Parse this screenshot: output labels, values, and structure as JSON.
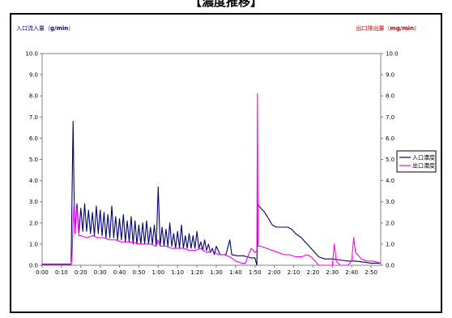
{
  "chart_data": {
    "type": "line",
    "title": "【濃度推移】",
    "y_left_label": {
      "prefix": "入口流入量（",
      "unit": "g/min",
      "suffix": "）"
    },
    "y_right_label": {
      "prefix": "出口排出量（",
      "unit": "mg/min",
      "suffix": "）"
    },
    "ylim": [
      0,
      10
    ],
    "y_ticks": [
      "0.0",
      "1.0",
      "2.0",
      "3.0",
      "4.0",
      "5.0",
      "6.0",
      "7.0",
      "8.0",
      "9.0",
      "10.0"
    ],
    "x_ticks": [
      "0:00",
      "0:10",
      "0:20",
      "0:30",
      "0:40",
      "0:50",
      "1:00",
      "1:10",
      "1:20",
      "1:30",
      "1:40",
      "1:50",
      "2:00",
      "2:10",
      "2:20",
      "2:30",
      "2:40",
      "2:50"
    ],
    "xlim_minutes": [
      0,
      175
    ],
    "grid": false,
    "legend_position": "right",
    "series": [
      {
        "name": "入口濃度",
        "color": "#000080",
        "points": [
          [
            0,
            0.05
          ],
          [
            10,
            0.05
          ],
          [
            15,
            0.05
          ],
          [
            15.5,
            3.5
          ],
          [
            16,
            6.8
          ],
          [
            16.5,
            3.5
          ],
          [
            17,
            1.6
          ],
          [
            18,
            2.9
          ],
          [
            19,
            1.5
          ],
          [
            20,
            2.7
          ],
          [
            21,
            1.6
          ],
          [
            22,
            2.9
          ],
          [
            23,
            1.6
          ],
          [
            24,
            2.6
          ],
          [
            25,
            1.5
          ],
          [
            26,
            2.5
          ],
          [
            27,
            1.4
          ],
          [
            28,
            2.8
          ],
          [
            29,
            1.5
          ],
          [
            30,
            2.6
          ],
          [
            31,
            1.4
          ],
          [
            32,
            2.5
          ],
          [
            33,
            1.3
          ],
          [
            34,
            2.4
          ],
          [
            35,
            1.3
          ],
          [
            36,
            2.8
          ],
          [
            37,
            1.3
          ],
          [
            38,
            2.3
          ],
          [
            39,
            1.2
          ],
          [
            40,
            2.2
          ],
          [
            41,
            1.2
          ],
          [
            42,
            2.4
          ],
          [
            43,
            1.1
          ],
          [
            44,
            2.1
          ],
          [
            45,
            1.1
          ],
          [
            46,
            2.3
          ],
          [
            47,
            1.0
          ],
          [
            48,
            2.1
          ],
          [
            49,
            1.0
          ],
          [
            50,
            1.9
          ],
          [
            51,
            1.0
          ],
          [
            52,
            2.0
          ],
          [
            53,
            1.0
          ],
          [
            54,
            2.1
          ],
          [
            55,
            1.0
          ],
          [
            56,
            1.8
          ],
          [
            57,
            1.0
          ],
          [
            58,
            1.9
          ],
          [
            59,
            0.9
          ],
          [
            60,
            3.7
          ],
          [
            61,
            0.9
          ],
          [
            62,
            1.8
          ],
          [
            63,
            0.9
          ],
          [
            64,
            1.7
          ],
          [
            65,
            0.9
          ],
          [
            66,
            2.0
          ],
          [
            67,
            0.9
          ],
          [
            68,
            1.5
          ],
          [
            69,
            0.8
          ],
          [
            70,
            1.6
          ],
          [
            71,
            0.8
          ],
          [
            72,
            1.9
          ],
          [
            73,
            0.8
          ],
          [
            74,
            1.4
          ],
          [
            75,
            0.8
          ],
          [
            76,
            1.5
          ],
          [
            77,
            0.8
          ],
          [
            78,
            1.4
          ],
          [
            79,
            0.8
          ],
          [
            80,
            1.6
          ],
          [
            81,
            0.8
          ],
          [
            82,
            1.1
          ],
          [
            83,
            0.7
          ],
          [
            84,
            1.2
          ],
          [
            85,
            0.7
          ],
          [
            86,
            1.0
          ],
          [
            87,
            0.6
          ],
          [
            88,
            0.8
          ],
          [
            89,
            0.5
          ],
          [
            90,
            0.9
          ],
          [
            92,
            0.5
          ],
          [
            95,
            0.5
          ],
          [
            97,
            1.2
          ],
          [
            98,
            0.5
          ],
          [
            101,
            0.45
          ],
          [
            104,
            0.45
          ],
          [
            106,
            0.4
          ],
          [
            108,
            0.35
          ],
          [
            110,
            0.35
          ],
          [
            111,
            0.0
          ],
          [
            111.5,
            2.9
          ],
          [
            112,
            2.8
          ],
          [
            113,
            2.7
          ],
          [
            115,
            2.5
          ],
          [
            117,
            2.2
          ],
          [
            119,
            1.9
          ],
          [
            121,
            1.8
          ],
          [
            124,
            1.8
          ],
          [
            127,
            1.8
          ],
          [
            129,
            1.7
          ],
          [
            131,
            1.5
          ],
          [
            134,
            1.3
          ],
          [
            137,
            1.0
          ],
          [
            140,
            0.7
          ],
          [
            143,
            0.4
          ],
          [
            146,
            0.3
          ],
          [
            150,
            0.3
          ],
          [
            154,
            0.25
          ],
          [
            158,
            0.2
          ],
          [
            162,
            0.2
          ],
          [
            166,
            0.15
          ],
          [
            170,
            0.1
          ],
          [
            175,
            0.1
          ]
        ]
      },
      {
        "name": "出口濃度",
        "color": "#ff00ff",
        "points": [
          [
            0,
            0.0
          ],
          [
            15,
            0.0
          ],
          [
            15.5,
            0.5
          ],
          [
            16,
            2.0
          ],
          [
            16.5,
            3.0
          ],
          [
            17,
            1.5
          ],
          [
            18,
            2.7
          ],
          [
            19,
            1.4
          ],
          [
            20,
            1.4
          ],
          [
            23,
            1.3
          ],
          [
            26,
            1.4
          ],
          [
            29,
            1.3
          ],
          [
            32,
            1.3
          ],
          [
            35,
            1.2
          ],
          [
            38,
            1.2
          ],
          [
            41,
            1.1
          ],
          [
            44,
            1.1
          ],
          [
            47,
            1.1
          ],
          [
            50,
            1.0
          ],
          [
            53,
            1.0
          ],
          [
            56,
            1.0
          ],
          [
            59,
            0.9
          ],
          [
            60,
            1.2
          ],
          [
            61,
            0.9
          ],
          [
            64,
            0.9
          ],
          [
            67,
            0.8
          ],
          [
            70,
            0.8
          ],
          [
            73,
            0.8
          ],
          [
            76,
            0.7
          ],
          [
            79,
            0.7
          ],
          [
            82,
            0.8
          ],
          [
            85,
            0.6
          ],
          [
            88,
            0.7
          ],
          [
            91,
            0.5
          ],
          [
            94,
            0.5
          ],
          [
            97,
            0.4
          ],
          [
            100,
            0.2
          ],
          [
            103,
            0.1
          ],
          [
            105,
            0.1
          ],
          [
            108,
            0.8
          ],
          [
            110,
            0.6
          ],
          [
            111,
            0.7
          ],
          [
            111.3,
            8.1
          ],
          [
            111.6,
            0.9
          ],
          [
            113,
            0.9
          ],
          [
            116,
            0.8
          ],
          [
            119,
            0.7
          ],
          [
            122,
            0.6
          ],
          [
            125,
            0.5
          ],
          [
            128,
            0.5
          ],
          [
            131,
            0.4
          ],
          [
            134,
            0.4
          ],
          [
            137,
            0.5
          ],
          [
            139,
            0.4
          ],
          [
            141,
            0.2
          ],
          [
            143,
            0.0
          ],
          [
            145,
            0.0
          ],
          [
            148,
            0.0
          ],
          [
            150,
            0.0
          ],
          [
            151,
            1.0
          ],
          [
            152,
            0.2
          ],
          [
            154,
            0.0
          ],
          [
            158,
            0.0
          ],
          [
            160,
            0.2
          ],
          [
            161,
            1.3
          ],
          [
            162,
            0.6
          ],
          [
            165,
            0.3
          ],
          [
            168,
            0.2
          ],
          [
            171,
            0.2
          ],
          [
            175,
            0.1
          ]
        ]
      }
    ]
  }
}
